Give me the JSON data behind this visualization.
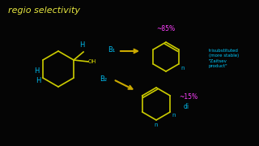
{
  "background_color": "#050505",
  "title": "regio selectivity",
  "title_color": "#e8e840",
  "title_fontsize": 8,
  "b1_label": "B₁",
  "b2_label": "B₂",
  "pct1_label": "~85%",
  "pct2_label": "~15%",
  "pct_color": "#ff40ff",
  "label_di": "di",
  "label_trisubstituted": "trisubstituted\n(more stable)\n\"Zaitsev\nproduct\"",
  "trisubstituted_color": "#00ccff",
  "arrow_color": "#ccaa00",
  "ring_color": "#cccc00",
  "blue_color": "#00bbee",
  "oh_color": "#cccc00"
}
